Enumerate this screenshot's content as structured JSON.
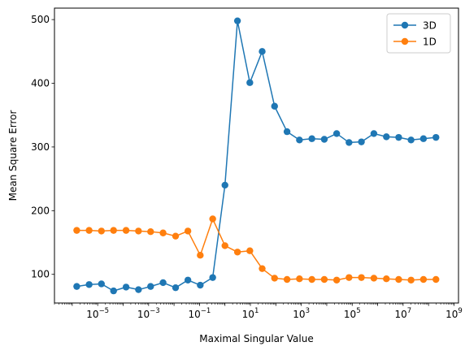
{
  "chart_data": {
    "type": "line",
    "xlabel": "Maximal Singular Value",
    "ylabel": "Mean Square Error",
    "xscale": "log",
    "xlim": [
      2e-07,
      1500000000.0
    ],
    "ylim": [
      55,
      518
    ],
    "xticks": [
      {
        "value": 1e-05,
        "base": "10",
        "exp": "−5"
      },
      {
        "value": 0.001,
        "base": "10",
        "exp": "−3"
      },
      {
        "value": 0.1,
        "base": "10",
        "exp": "−1"
      },
      {
        "value": 10.0,
        "base": "10",
        "exp": "1"
      },
      {
        "value": 1000.0,
        "base": "10",
        "exp": "3"
      },
      {
        "value": 100000.0,
        "base": "10",
        "exp": "5"
      },
      {
        "value": 10000000.0,
        "base": "10",
        "exp": "7"
      },
      {
        "value": 1000000000.0,
        "base": "10",
        "exp": "9"
      }
    ],
    "yticks": [
      100,
      200,
      300,
      400,
      500
    ],
    "grid": false,
    "legend_position": "top-right",
    "x": [
      1e-06,
      2.15e-06,
      4.64e-06,
      1e-05,
      2.15e-05,
      4.64e-05,
      0.0001,
      0.000215,
      0.000464,
      0.001,
      0.00215,
      0.00464,
      0.01,
      0.0215,
      0.0464,
      0.1,
      0.215,
      0.464,
      1.0,
      2.15,
      4.64,
      10.0,
      21.5,
      46.4,
      100.0,
      215.0,
      464.0,
      1000.0,
      2150.0,
      4640.0,
      10000.0,
      21500.0,
      46400.0,
      100000.0,
      215000.0,
      464000.0,
      1000000.0,
      2150000.0,
      4640000.0,
      10000000.0,
      21500000.0,
      46400000.0,
      100000000.0,
      215000000.0,
      464000000.0
    ],
    "series": [
      {
        "name": "3D",
        "color": "#1f77b4",
        "x": [
          1.5e-06,
          4.6e-06,
          1.4e-05,
          4.2e-05,
          0.00013,
          0.0004,
          0.0012,
          0.0037,
          0.0115,
          0.035,
          0.107,
          0.33,
          1.0,
          3.1,
          9.5,
          29.0,
          89.0,
          275.0,
          845.0,
          2600.0,
          8000.0,
          24500.0,
          75000.0,
          230000.0,
          710000.0,
          2200000.0,
          6700000.0,
          20500000.0,
          63000000.0,
          195000000.0
        ],
        "y": [
          81,
          84,
          85,
          74,
          80,
          76,
          81,
          87,
          79,
          91,
          83,
          95,
          240,
          498,
          401,
          450,
          364,
          324,
          311,
          313,
          312,
          321,
          307,
          308,
          321,
          316,
          315,
          311,
          313,
          315
        ]
      },
      {
        "name": "1D",
        "color": "#ff7f0e",
        "x": [
          1.5e-06,
          4.6e-06,
          1.4e-05,
          4.2e-05,
          0.00013,
          0.0004,
          0.0012,
          0.0037,
          0.0115,
          0.035,
          0.107,
          0.33,
          1.0,
          3.1,
          9.5,
          29.0,
          89.0,
          275.0,
          845.0,
          2600.0,
          8000.0,
          24500.0,
          75000.0,
          230000.0,
          710000.0,
          2200000.0,
          6700000.0,
          20500000.0,
          63000000.0,
          195000000.0
        ],
        "y": [
          169,
          169,
          168,
          169,
          169,
          168,
          167,
          165,
          160,
          168,
          130,
          187,
          145,
          135,
          137,
          109,
          94,
          92,
          93,
          92,
          92,
          91,
          95,
          95,
          94,
          93,
          92,
          91,
          92,
          92
        ]
      }
    ]
  }
}
